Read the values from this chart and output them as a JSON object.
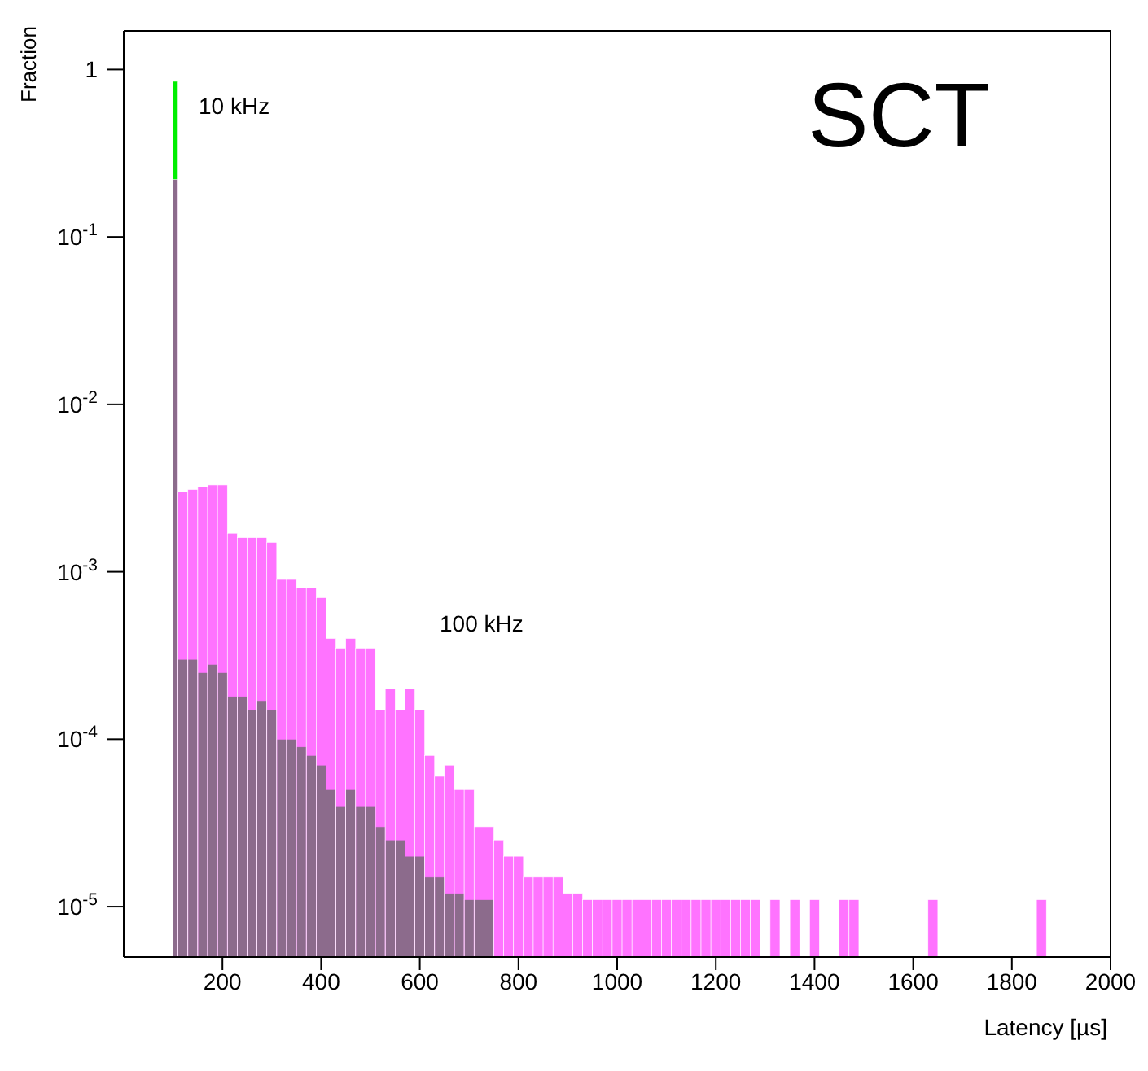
{
  "chart_data": {
    "type": "histogram",
    "title": "SCT",
    "xlabel": "Latency [µs]",
    "ylabel": "Fraction",
    "log": true,
    "xlim": [
      0,
      2000
    ],
    "xticks": [
      200,
      400,
      600,
      800,
      1000,
      1200,
      1400,
      1600,
      1800,
      2000
    ],
    "ylim": [
      5e-06,
      1.7
    ],
    "yticks": [
      {
        "value": 1,
        "label": "1"
      },
      {
        "value": 0.1,
        "label": "10$^{-1}$"
      },
      {
        "value": 0.01,
        "label": "10$^{-2}$"
      },
      {
        "value": 0.001,
        "label": "10$^{-3}$"
      },
      {
        "value": 0.0001,
        "label": "10$^{-4}$"
      },
      {
        "value": 1e-05,
        "label": "10$^{-5}$"
      }
    ],
    "bins": [
      100,
      110,
      130,
      150,
      170,
      190,
      210,
      230,
      250,
      270,
      290,
      310,
      330,
      350,
      370,
      390,
      410,
      430,
      450,
      470,
      490,
      510,
      530,
      550,
      570,
      590,
      610,
      630,
      650,
      670,
      690,
      710,
      730,
      750,
      770,
      790,
      810,
      830,
      850,
      870,
      890,
      910,
      930,
      950,
      970,
      990,
      1010,
      1030,
      1050,
      1070,
      1090,
      1110,
      1130,
      1150,
      1170,
      1190,
      1210,
      1230,
      1250,
      1270,
      1290,
      1310,
      1330,
      1350,
      1370,
      1390,
      1410,
      1450,
      1470,
      1490,
      1630,
      1650,
      1850,
      1870
    ],
    "series": [
      {
        "name": "10 kHz",
        "color": "#00ee00",
        "values": [
          0.85,
          0.0003,
          0.0003,
          0.00025,
          0.00028,
          0.00025,
          0.00018,
          0.00018,
          0.00015,
          0.00017,
          0.00015,
          0.0001,
          0.0001,
          9e-05,
          8e-05,
          7e-05,
          5e-05,
          4e-05,
          5e-05,
          4e-05,
          4e-05,
          3e-05,
          2.5e-05,
          2.5e-05,
          2e-05,
          2e-05,
          1.5e-05,
          1.5e-05,
          1.2e-05,
          1.2e-05,
          1.1e-05,
          1.1e-05,
          1.1e-05,
          null,
          null,
          null,
          null,
          null,
          null,
          null,
          null,
          null,
          null,
          null,
          null,
          null,
          null,
          null,
          null,
          null,
          null,
          null,
          null,
          null,
          null,
          null,
          null,
          null,
          null,
          null,
          null,
          null,
          null,
          null,
          null,
          null,
          null,
          null,
          null,
          null,
          null,
          null,
          null
        ]
      },
      {
        "name": "100 kHz",
        "color": "#ff00ff",
        "values": [
          0.22,
          0.003,
          0.0031,
          0.0032,
          0.0033,
          0.0033,
          0.0017,
          0.0016,
          0.0016,
          0.0016,
          0.0015,
          0.0009,
          0.0009,
          0.0008,
          0.0008,
          0.0007,
          0.0004,
          0.00035,
          0.0004,
          0.00035,
          0.00035,
          0.00015,
          0.0002,
          0.00015,
          0.0002,
          0.00015,
          8e-05,
          6e-05,
          7e-05,
          5e-05,
          5e-05,
          3e-05,
          3e-05,
          2.5e-05,
          2e-05,
          2e-05,
          1.5e-05,
          1.5e-05,
          1.5e-05,
          1.5e-05,
          1.2e-05,
          1.2e-05,
          1.1e-05,
          1.1e-05,
          1.1e-05,
          1.1e-05,
          1.1e-05,
          1.1e-05,
          1.1e-05,
          1.1e-05,
          1.1e-05,
          1.1e-05,
          1.1e-05,
          1.1e-05,
          1.1e-05,
          1.1e-05,
          1.1e-05,
          1.1e-05,
          1.1e-05,
          1.1e-05,
          null,
          1.1e-05,
          null,
          1.1e-05,
          null,
          1.1e-05,
          null,
          1.1e-05,
          1.1e-05,
          null,
          1.1e-05,
          null,
          1.1e-05
        ]
      }
    ]
  }
}
